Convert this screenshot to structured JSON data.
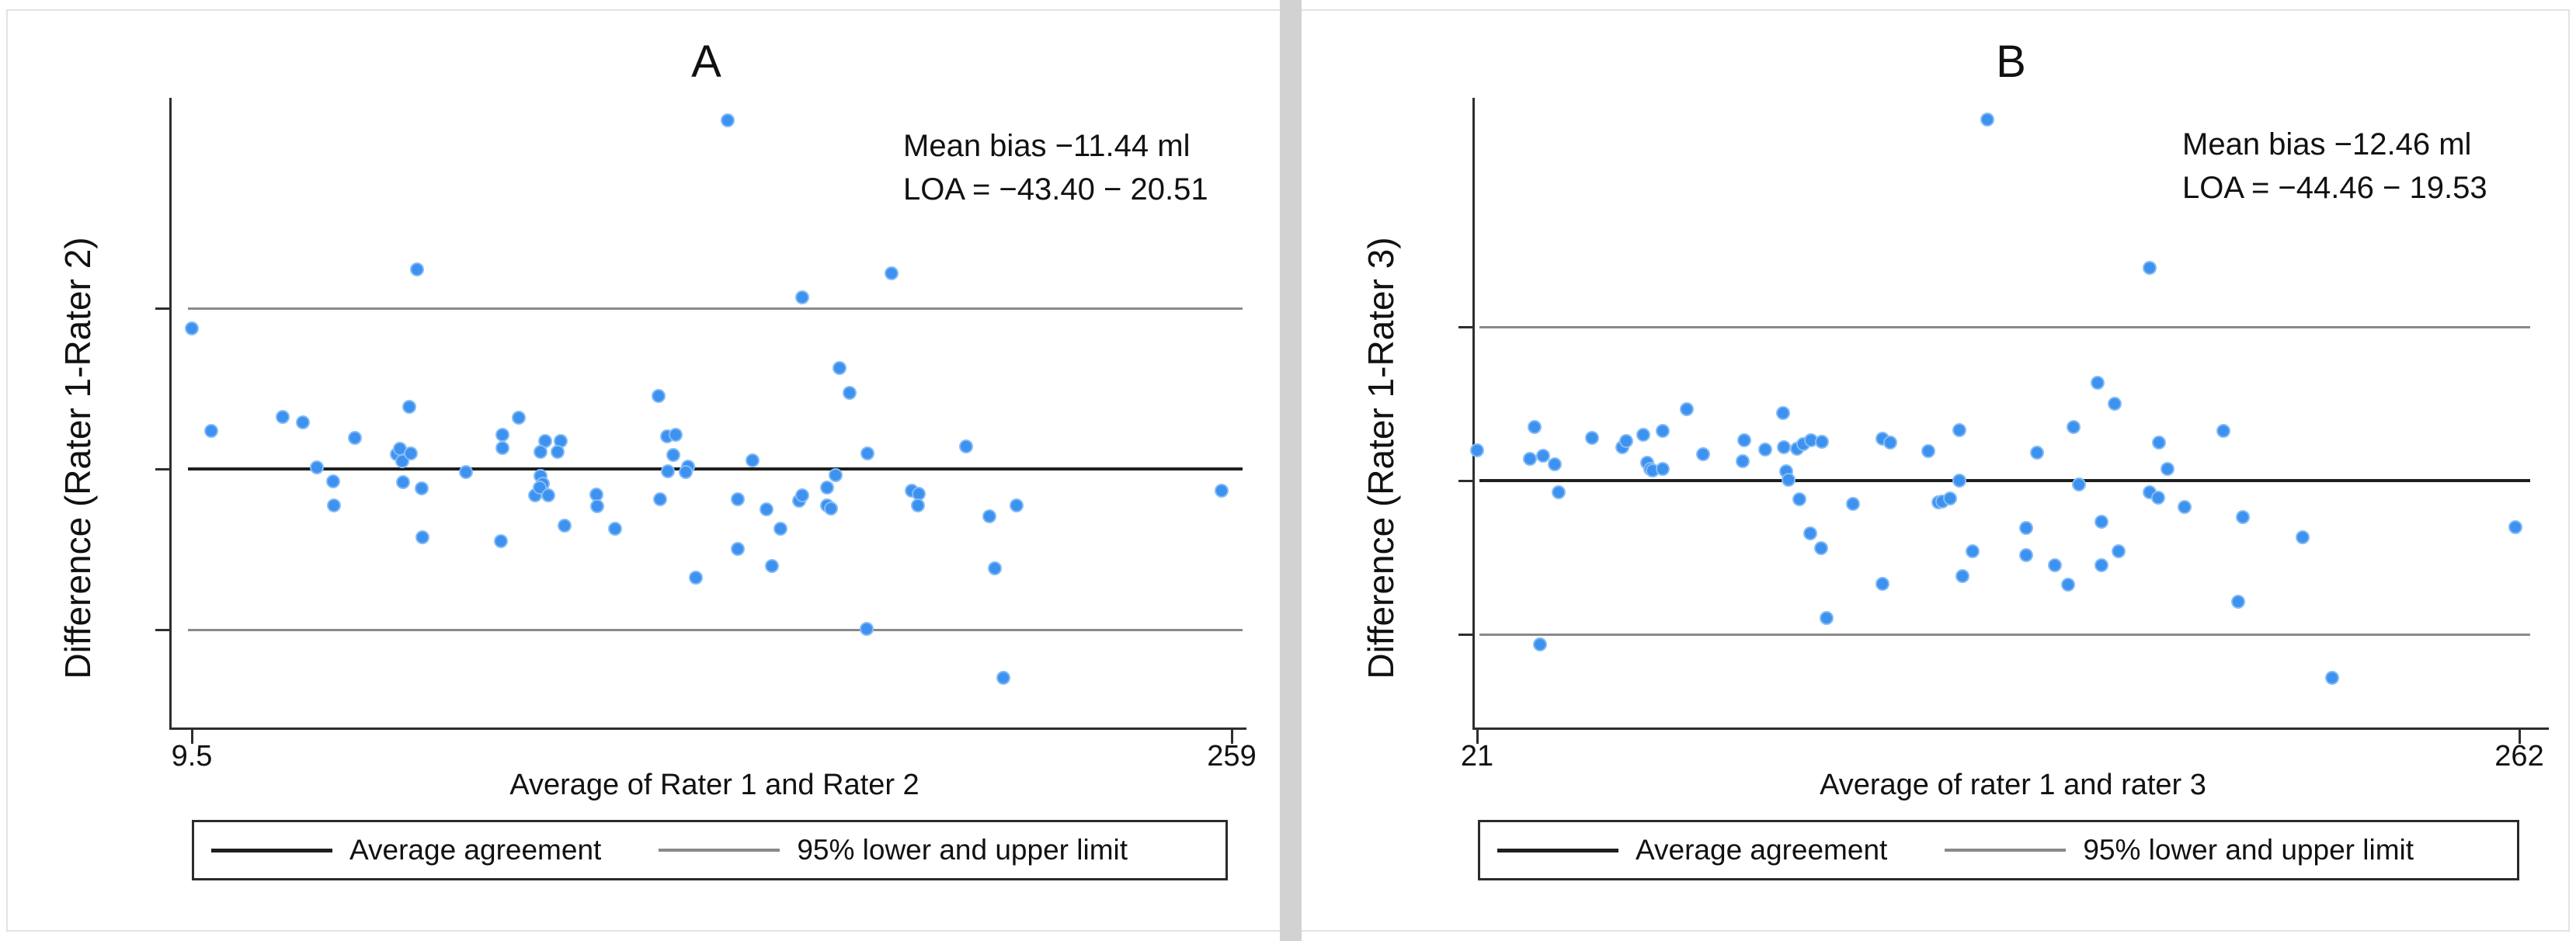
{
  "figure": {
    "panels": [
      {
        "title": "A",
        "annotation": {
          "line1": "Mean bias −11.44 ml",
          "line2": "LOA = −43.40 − 20.51"
        }
      },
      {
        "title": "B",
        "annotation": {
          "line1": "Mean bias −12.46 ml",
          "line2": "LOA = −44.46 − 19.53"
        }
      }
    ],
    "legend": {
      "items": [
        {
          "label": "Average agreement",
          "line_color": "#1f1f1f"
        },
        {
          "label": "95% lower and upper limit",
          "line_color": "#8a8a8a"
        }
      ]
    },
    "colors": {
      "marker_fill": "#3d92f0",
      "marker_edge": "#85bcf6",
      "mean_line": "#1f1f1f",
      "loa_line": "#8a8a8a",
      "axis": "#2e2e2e",
      "divider": "#d2d2d2",
      "frame": "#e3e3e3"
    }
  },
  "chart_data": [
    {
      "type": "scatter",
      "panel": "A",
      "title": "A",
      "xlabel": "Average of Rater 1 and Rater 2",
      "ylabel": "Difference (Rater 1-Rater 2)",
      "x_tick_labels": [
        "9.5",
        "259"
      ],
      "x_domain": [
        9.5,
        259
      ],
      "y_domain_approx": [
        -63,
        63
      ],
      "mean_bias": -11.44,
      "loa_lower": -43.4,
      "loa_upper": 20.51,
      "annotation": [
        "Mean bias −11.44 ml",
        "LOA = −43.40 − 20.51"
      ],
      "legend_position": "bottom",
      "grid": false,
      "points": [
        [
          9.5,
          16.5
        ],
        [
          14.2,
          -3.9
        ],
        [
          31.3,
          -1.1
        ],
        [
          36.1,
          -2.2
        ],
        [
          39.5,
          -11.1
        ],
        [
          43.4,
          -13.9
        ],
        [
          43.6,
          -18.7
        ],
        [
          48.6,
          -5.3
        ],
        [
          58.6,
          -8.5
        ],
        [
          59.4,
          -7.4
        ],
        [
          60,
          -9.9
        ],
        [
          62,
          -8.3
        ],
        [
          61.6,
          0.9
        ],
        [
          63.5,
          28.3
        ],
        [
          60.2,
          -14.1
        ],
        [
          64.7,
          -15.3
        ],
        [
          64.9,
          -25
        ],
        [
          75.3,
          -12
        ],
        [
          84,
          -4.7
        ],
        [
          84,
          -7.3
        ],
        [
          83.7,
          -25.8
        ],
        [
          87.9,
          -1.3
        ],
        [
          91.8,
          -16.7
        ],
        [
          93.2,
          -12.9
        ],
        [
          93.8,
          -14.3
        ],
        [
          93,
          -15.2
        ],
        [
          94.2,
          -5.9
        ],
        [
          93.1,
          -8
        ],
        [
          95.1,
          -16.7
        ],
        [
          98.1,
          -5.9
        ],
        [
          97.2,
          -8
        ],
        [
          98.9,
          -22.7
        ],
        [
          106.5,
          -16.5
        ],
        [
          106.7,
          -18.8
        ],
        [
          111,
          -23.4
        ],
        [
          121.5,
          3
        ],
        [
          121.8,
          -17.5
        ],
        [
          123.5,
          -5
        ],
        [
          125.6,
          -4.7
        ],
        [
          125.1,
          -8.7
        ],
        [
          123.8,
          -11.9
        ],
        [
          128.6,
          -10.9
        ],
        [
          128.1,
          -12.1
        ],
        [
          130.5,
          -33
        ],
        [
          138,
          57.9
        ],
        [
          140.4,
          -17.5
        ],
        [
          140.4,
          -27.3
        ],
        [
          144.1,
          -9.7
        ],
        [
          147.3,
          -19.5
        ],
        [
          148.7,
          -30.7
        ],
        [
          150.8,
          -23.4
        ],
        [
          155.3,
          -17.8
        ],
        [
          156,
          -16.7
        ],
        [
          156,
          22.6
        ],
        [
          162,
          -15.1
        ],
        [
          162,
          -18.7
        ],
        [
          162.9,
          -19.3
        ],
        [
          164,
          -12.7
        ],
        [
          164.9,
          8.6
        ],
        [
          167.3,
          3.7
        ],
        [
          171.7,
          -8.4
        ],
        [
          171.5,
          -43.3
        ],
        [
          177.4,
          27.4
        ],
        [
          182.3,
          -15.7
        ],
        [
          184,
          -16.4
        ],
        [
          183.8,
          -18.7
        ],
        [
          195.3,
          -7
        ],
        [
          200.9,
          -20.8
        ],
        [
          202.2,
          -31.2
        ],
        [
          204.2,
          -52.9
        ],
        [
          207.4,
          -18.7
        ],
        [
          256.6,
          -15.7
        ]
      ]
    },
    {
      "type": "scatter",
      "panel": "B",
      "title": "B",
      "xlabel": "Average of rater 1 and rater 3",
      "ylabel": "Difference (Rater 1-Rater 3)",
      "x_tick_labels": [
        "21",
        "262"
      ],
      "x_domain": [
        21,
        262
      ],
      "y_domain_approx": [
        -63,
        64
      ],
      "mean_bias": -12.46,
      "loa_lower": -44.46,
      "loa_upper": 19.53,
      "annotation": [
        "Mean bias −12.46 ml",
        "LOA = −44.46 − 19.53"
      ],
      "legend_position": "bottom",
      "grid": false,
      "points": [
        [
          21,
          -6.2
        ],
        [
          34.2,
          -1.3
        ],
        [
          33.3,
          -7.9
        ],
        [
          36.2,
          -7.3
        ],
        [
          39,
          -9.1
        ],
        [
          39.9,
          -14.9
        ],
        [
          35.5,
          -46.5
        ],
        [
          47.5,
          -3.6
        ],
        [
          54.5,
          -5.5
        ],
        [
          55.5,
          -4.3
        ],
        [
          59.4,
          -2.9
        ],
        [
          63.9,
          -2.1
        ],
        [
          60.3,
          -8.8
        ],
        [
          61,
          -10
        ],
        [
          61.5,
          -10.3
        ],
        [
          64,
          -10
        ],
        [
          69.5,
          2.4
        ],
        [
          73.3,
          -6.9
        ],
        [
          82.8,
          -4
        ],
        [
          82.4,
          -8.5
        ],
        [
          87.6,
          -6
        ],
        [
          91.8,
          1.6
        ],
        [
          92,
          -5.5
        ],
        [
          95,
          -5.8
        ],
        [
          96.5,
          -4.8
        ],
        [
          98.2,
          -4
        ],
        [
          100.8,
          -4.4
        ],
        [
          92.5,
          -10.5
        ],
        [
          93,
          -12.3
        ],
        [
          95.5,
          -16.4
        ],
        [
          98,
          -23.5
        ],
        [
          100.5,
          -26.5
        ],
        [
          101.8,
          -41
        ],
        [
          108,
          -17.3
        ],
        [
          114.7,
          -3.8
        ],
        [
          116.5,
          -4.6
        ],
        [
          114.7,
          -34
        ],
        [
          125.4,
          -6.3
        ],
        [
          127.6,
          -17
        ],
        [
          128.5,
          -16.8
        ],
        [
          130.3,
          -16.2
        ],
        [
          132.6,
          -12.5
        ],
        [
          132.6,
          -2
        ],
        [
          133.3,
          -32.3
        ],
        [
          135.6,
          -27.2
        ],
        [
          139,
          62.7
        ],
        [
          148,
          -22.3
        ],
        [
          148,
          -28
        ],
        [
          150.5,
          -6.6
        ],
        [
          154.6,
          -30.1
        ],
        [
          157.7,
          -34.1
        ],
        [
          158.9,
          -1.3
        ],
        [
          160.2,
          -13.3
        ],
        [
          164.5,
          7.9
        ],
        [
          165.4,
          -21
        ],
        [
          165.4,
          -30.1
        ],
        [
          168.4,
          3.5
        ],
        [
          169.3,
          -27.2
        ],
        [
          176.5,
          31.8
        ],
        [
          176.5,
          -14.9
        ],
        [
          178.5,
          -16
        ],
        [
          178.7,
          -4.5
        ],
        [
          180.7,
          -10
        ],
        [
          184.6,
          -17.9
        ],
        [
          193.6,
          -2.1
        ],
        [
          197,
          -37.7
        ],
        [
          198.1,
          -20.1
        ],
        [
          211.9,
          -24.3
        ],
        [
          218.7,
          -53.5
        ],
        [
          261.1,
          -22.2
        ]
      ]
    }
  ]
}
